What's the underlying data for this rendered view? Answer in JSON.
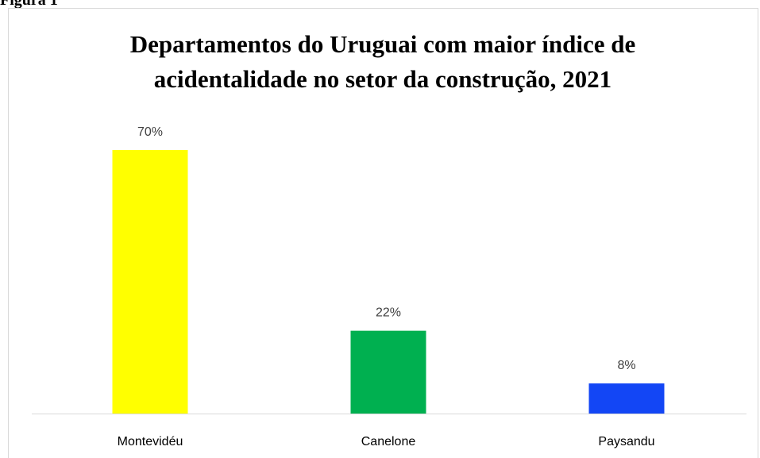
{
  "figure_label": "Figura 1",
  "chart_data": {
    "type": "bar",
    "title": [
      "Departamentos do Uruguai com maior índice de",
      "acidentalidade no setor da construção, 2021"
    ],
    "categories": [
      "Montevidéu",
      "Canelone",
      "Paysandu"
    ],
    "values": [
      70,
      22,
      8
    ],
    "value_labels": [
      "70%",
      "22%",
      "8%"
    ],
    "colors": [
      "#ffff00",
      "#00b050",
      "#1346f5"
    ]
  }
}
